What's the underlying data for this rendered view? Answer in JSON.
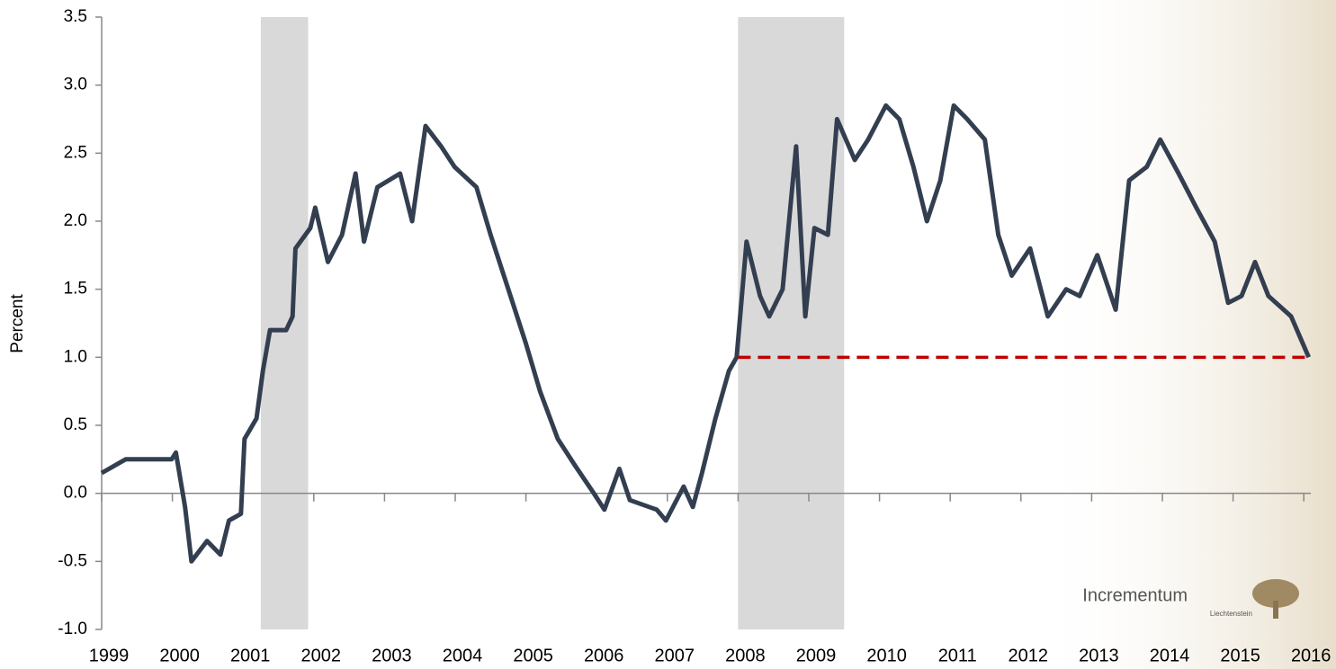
{
  "chart_data": {
    "type": "line",
    "y_label": "Percent",
    "x": [
      1999.0,
      1999.34,
      1999.99,
      2000.05,
      2000.18,
      2000.27,
      2000.49,
      2000.68,
      2000.8,
      2000.97,
      2001.02,
      2001.19,
      2001.28,
      2001.38,
      2001.61,
      2001.7,
      2001.74,
      2001.95,
      2002.02,
      2002.2,
      2002.4,
      2002.59,
      2002.71,
      2002.9,
      2003.22,
      2003.39,
      2003.58,
      2003.8,
      2003.99,
      2004.3,
      2004.5,
      2004.75,
      2005.0,
      2005.2,
      2005.45,
      2005.7,
      2005.96,
      2006.11,
      2006.32,
      2006.47,
      2006.85,
      2006.98,
      2007.23,
      2007.36,
      2007.49,
      2007.68,
      2007.87,
      2007.98,
      2008.12,
      2008.31,
      2008.44,
      2008.63,
      2008.82,
      2008.95,
      2009.08,
      2009.27,
      2009.4,
      2009.65,
      2009.84,
      2010.09,
      2010.28,
      2010.48,
      2010.67,
      2010.86,
      2011.05,
      2011.24,
      2011.49,
      2011.68,
      2011.87,
      2012.13,
      2012.38,
      2012.64,
      2012.83,
      2013.08,
      2013.34,
      2013.53,
      2013.78,
      2013.97,
      2014.23,
      2014.48,
      2014.74,
      2014.93,
      2015.12,
      2015.31,
      2015.5,
      2015.82,
      2016.07
    ],
    "values": [
      0.15,
      0.25,
      0.25,
      0.3,
      -0.1,
      -0.5,
      -0.35,
      -0.45,
      -0.2,
      -0.15,
      0.4,
      0.55,
      0.9,
      1.2,
      1.2,
      1.3,
      1.8,
      1.95,
      2.1,
      1.7,
      1.9,
      2.35,
      1.85,
      2.25,
      2.35,
      2.0,
      2.7,
      2.55,
      2.4,
      2.25,
      1.9,
      1.5,
      1.1,
      0.75,
      0.4,
      0.2,
      0.0,
      -0.12,
      0.18,
      -0.05,
      -0.12,
      -0.2,
      0.05,
      -0.1,
      0.15,
      0.55,
      0.9,
      1.0,
      1.85,
      1.45,
      1.3,
      1.5,
      2.55,
      1.3,
      1.95,
      1.9,
      2.75,
      2.45,
      2.6,
      2.85,
      2.75,
      2.4,
      2.0,
      2.3,
      2.85,
      2.75,
      2.6,
      1.9,
      1.6,
      1.8,
      1.3,
      1.5,
      1.45,
      1.75,
      1.35,
      2.3,
      2.4,
      2.6,
      2.35,
      2.1,
      1.85,
      1.4,
      1.45,
      1.7,
      1.45,
      1.3,
      1.0
    ],
    "color": "#333f50",
    "xlim": [
      1999,
      2016.1
    ],
    "xticks": [
      1999,
      2000,
      2001,
      2002,
      2003,
      2004,
      2005,
      2006,
      2007,
      2008,
      2009,
      2010,
      2011,
      2012,
      2013,
      2014,
      2015,
      2016
    ],
    "ylim": [
      -1,
      3.5
    ],
    "yticks": [
      {
        "value": -1,
        "label": "-1.0"
      },
      -0.5,
      {
        "value": 0,
        "label": "0.0"
      },
      0.5,
      {
        "value": 1,
        "label": "1.0"
      },
      1.5,
      {
        "value": 2,
        "label": "2.0"
      },
      2.5,
      {
        "value": 3,
        "label": "3.0"
      },
      3.5
    ],
    "shaded_periods": [
      [
        2001.25,
        2001.92
      ],
      [
        2008.0,
        2009.5
      ]
    ],
    "shade_color": "#d9d9d9",
    "reference_line": {
      "y": 1.0,
      "x": [
        2008.0,
        2016.07
      ],
      "color": "#c00000"
    },
    "logo": {
      "name": "Incrementum",
      "sub": "Liechtenstein"
    }
  }
}
